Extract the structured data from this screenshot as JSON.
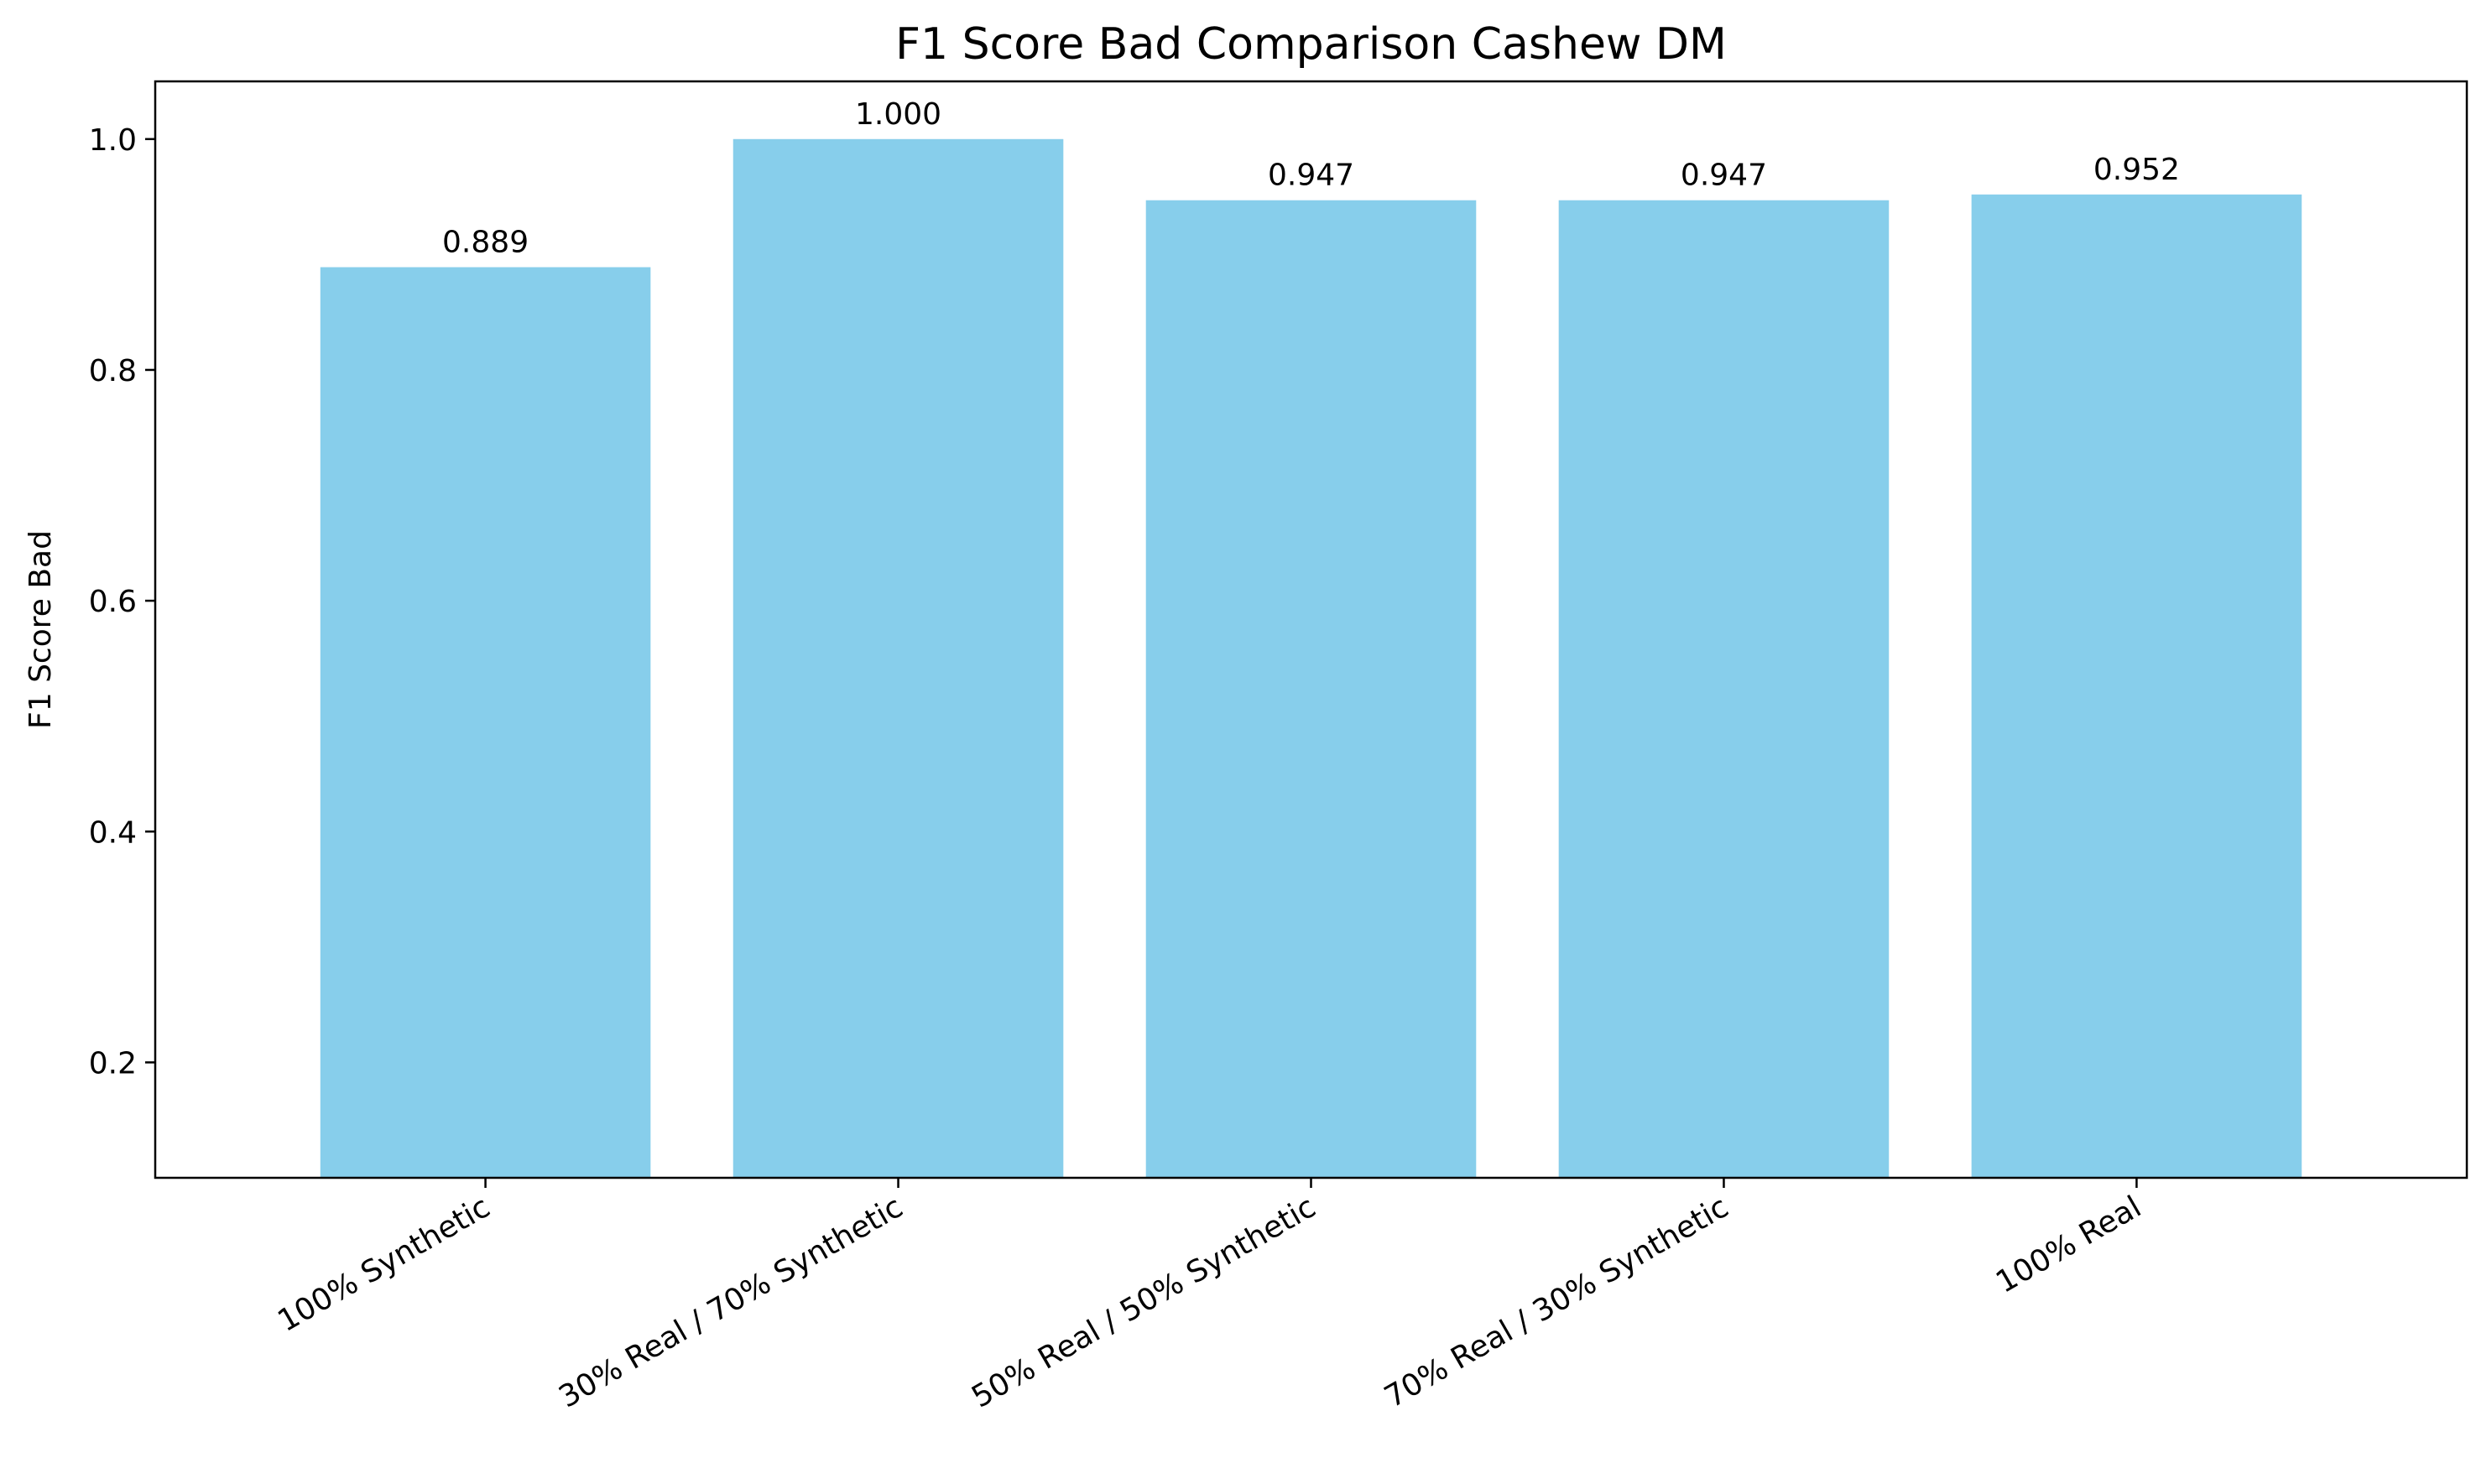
{
  "chart_data": {
    "type": "bar",
    "title": "F1 Score Bad Comparison Cashew DM",
    "xlabel": "",
    "ylabel": "F1 Score Bad",
    "categories": [
      "100% Synthetic",
      "30% Real / 70% Synthetic",
      "50% Real / 50% Synthetic",
      "70% Real / 30% Synthetic",
      "100% Real"
    ],
    "values": [
      0.889,
      1.0,
      0.947,
      0.947,
      0.952
    ],
    "value_labels": [
      "0.889",
      "1.000",
      "0.947",
      "0.947",
      "0.952"
    ],
    "ylim": [
      0.1,
      1.05
    ],
    "yticks": [
      0.2,
      0.4,
      0.6,
      0.8,
      1.0
    ],
    "ytick_labels": [
      "0.2",
      "0.4",
      "0.6",
      "0.8",
      "1.0"
    ],
    "bar_color": "#87CEEB",
    "grid": false,
    "legend": "none"
  }
}
